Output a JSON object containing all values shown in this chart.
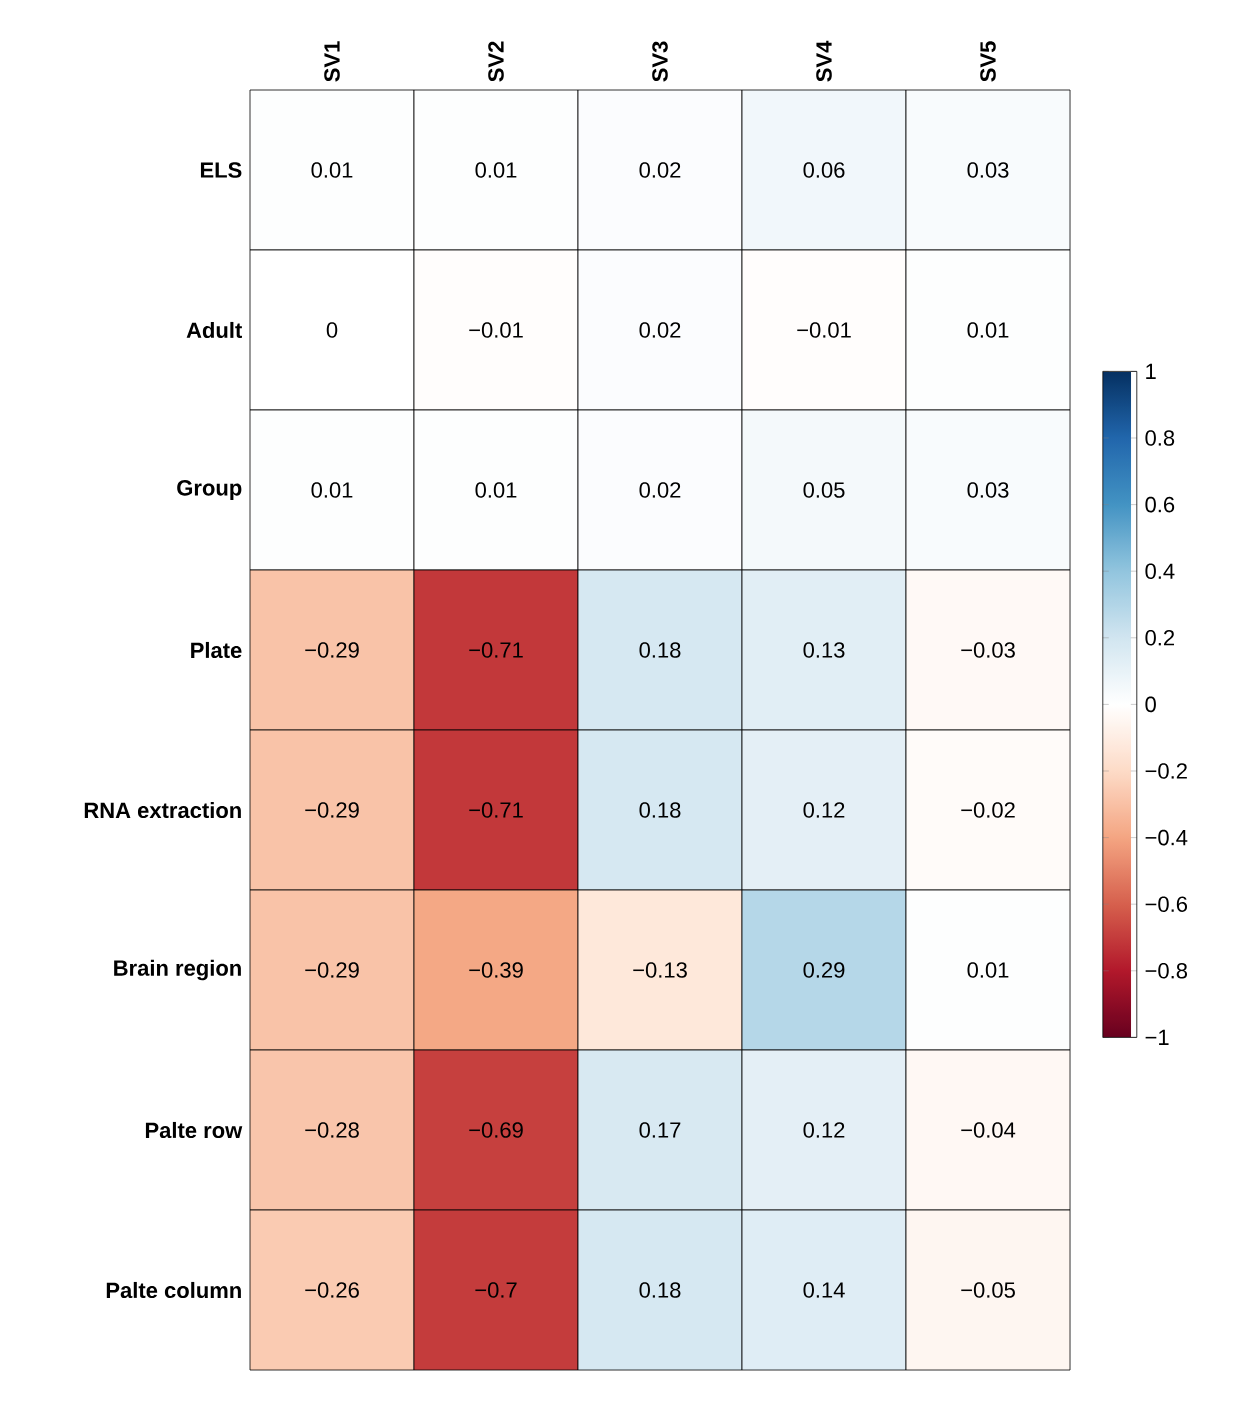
{
  "chart_data": {
    "type": "heatmap",
    "categories": [
      "SV1",
      "SV2",
      "SV3",
      "SV4",
      "SV5"
    ],
    "y_categories": [
      "ELS",
      "Adult",
      "Group",
      "Plate",
      "RNA extraction",
      "Brain region",
      "Palte row",
      "Palte column"
    ],
    "cells": [
      [
        0.01,
        0.01,
        0.02,
        0.06,
        0.03
      ],
      [
        0,
        -0.01,
        0.02,
        -0.01,
        0.01
      ],
      [
        0.01,
        0.01,
        0.02,
        0.05,
        0.03
      ],
      [
        -0.29,
        -0.71,
        0.18,
        0.13,
        -0.03
      ],
      [
        -0.29,
        -0.71,
        0.18,
        0.12,
        -0.02
      ],
      [
        -0.29,
        -0.39,
        -0.13,
        0.29,
        0.01
      ],
      [
        -0.28,
        -0.69,
        0.17,
        0.12,
        -0.04
      ],
      [
        -0.26,
        -0.7,
        0.18,
        0.14,
        -0.05
      ]
    ],
    "cell_labels": [
      [
        "0.01",
        "0.01",
        "0.02",
        "0.06",
        "0.03"
      ],
      [
        "0",
        "−0.01",
        "0.02",
        "−0.01",
        "0.01"
      ],
      [
        "0.01",
        "0.01",
        "0.02",
        "0.05",
        "0.03"
      ],
      [
        "−0.29",
        "−0.71",
        "0.18",
        "0.13",
        "−0.03"
      ],
      [
        "−0.29",
        "−0.71",
        "0.18",
        "0.12",
        "−0.02"
      ],
      [
        "−0.29",
        "−0.39",
        "−0.13",
        "0.29",
        "0.01"
      ],
      [
        "−0.28",
        "−0.69",
        "0.17",
        "0.12",
        "−0.04"
      ],
      [
        "−0.26",
        "−0.7",
        "0.18",
        "0.14",
        "−0.05"
      ]
    ],
    "clim": [
      -1,
      1
    ],
    "cticks": [
      {
        "value": -1,
        "label": "−1"
      },
      {
        "value": -0.8,
        "label": "−0.8"
      },
      {
        "value": -0.6,
        "label": "−0.6"
      },
      {
        "value": -0.4,
        "label": "−0.4"
      },
      {
        "value": -0.2,
        "label": "−0.2"
      },
      0,
      0.2,
      0.4,
      0.6,
      0.8,
      1
    ]
  }
}
